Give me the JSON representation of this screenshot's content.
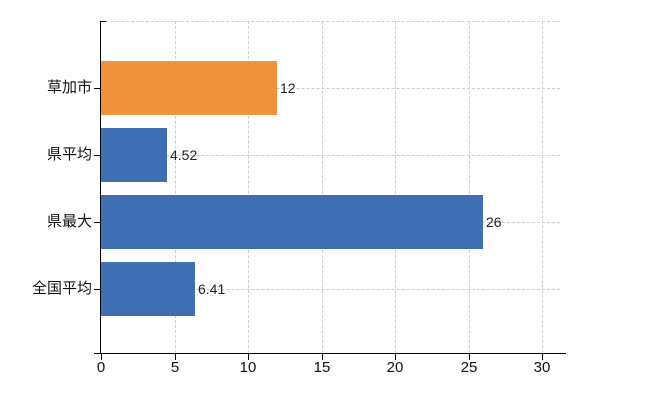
{
  "chart_data": {
    "type": "bar",
    "orientation": "horizontal",
    "title": "",
    "legend": "none",
    "grid": "dashed",
    "categories": [
      "草加市",
      "県平均",
      "県最大",
      "全国平均"
    ],
    "values": [
      12,
      4.52,
      26,
      6.41
    ],
    "value_labels": [
      "12",
      "4.52",
      "26",
      "6.41"
    ],
    "series_colors": [
      "#F0923B",
      "#3E6FB4",
      "#3E6FB4",
      "#3E6FB4"
    ],
    "x_ticks": [
      0,
      5,
      10,
      15,
      20,
      25,
      30
    ],
    "xlim": [
      0,
      31.5
    ],
    "xlabel": "",
    "ylabel": "",
    "colors": {
      "bar_orange": "#F0923B",
      "bar_blue": "#3E6FB4",
      "axis": "#000000",
      "gridline": "#cccccc",
      "text": "#111111",
      "background": "#ffffff"
    }
  }
}
